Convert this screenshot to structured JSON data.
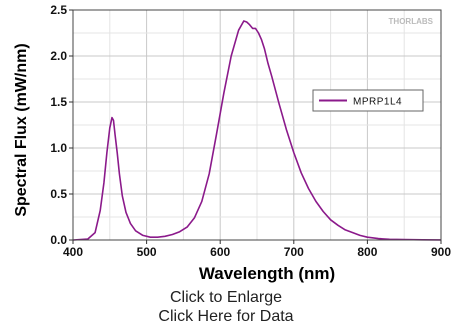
{
  "chart_data": {
    "type": "line",
    "title": "",
    "xlabel": "Wavelength (nm)",
    "ylabel": "Spectral Flux (mW/nm)",
    "xlim": [
      400,
      900
    ],
    "ylim": [
      0,
      2.5
    ],
    "x_ticks": [
      "400",
      "500",
      "600",
      "700",
      "800",
      "900"
    ],
    "y_ticks": [
      "0.0",
      "0.5",
      "1.0",
      "1.5",
      "2.0",
      "2.5"
    ],
    "grid": true,
    "legend_position": "right",
    "watermark": "THORLABS",
    "series": [
      {
        "name": "MPRP1L4",
        "color": "#8b1a8b",
        "x": [
          400,
          420,
          430,
          437,
          442,
          446,
          450,
          453,
          455,
          457,
          460,
          463,
          467,
          472,
          478,
          485,
          495,
          505,
          515,
          525,
          535,
          545,
          555,
          565,
          575,
          585,
          595,
          605,
          615,
          625,
          632,
          636,
          640,
          644,
          648,
          652,
          656,
          660,
          665,
          670,
          680,
          690,
          700,
          710,
          720,
          730,
          740,
          750,
          760,
          770,
          780,
          790,
          800,
          815,
          830,
          850,
          875,
          900
        ],
        "y": [
          0.0,
          0.01,
          0.08,
          0.32,
          0.62,
          0.95,
          1.22,
          1.33,
          1.3,
          1.15,
          0.95,
          0.72,
          0.48,
          0.3,
          0.18,
          0.1,
          0.05,
          0.03,
          0.03,
          0.04,
          0.06,
          0.09,
          0.14,
          0.24,
          0.42,
          0.72,
          1.15,
          1.6,
          2.0,
          2.28,
          2.38,
          2.37,
          2.34,
          2.3,
          2.3,
          2.25,
          2.18,
          2.08,
          1.92,
          1.78,
          1.48,
          1.2,
          0.95,
          0.73,
          0.56,
          0.42,
          0.31,
          0.22,
          0.16,
          0.11,
          0.08,
          0.05,
          0.03,
          0.015,
          0.008,
          0.004,
          0.002,
          0.001
        ]
      }
    ]
  },
  "links": {
    "enlarge": "Click to Enlarge",
    "data": "Click Here for Data"
  }
}
